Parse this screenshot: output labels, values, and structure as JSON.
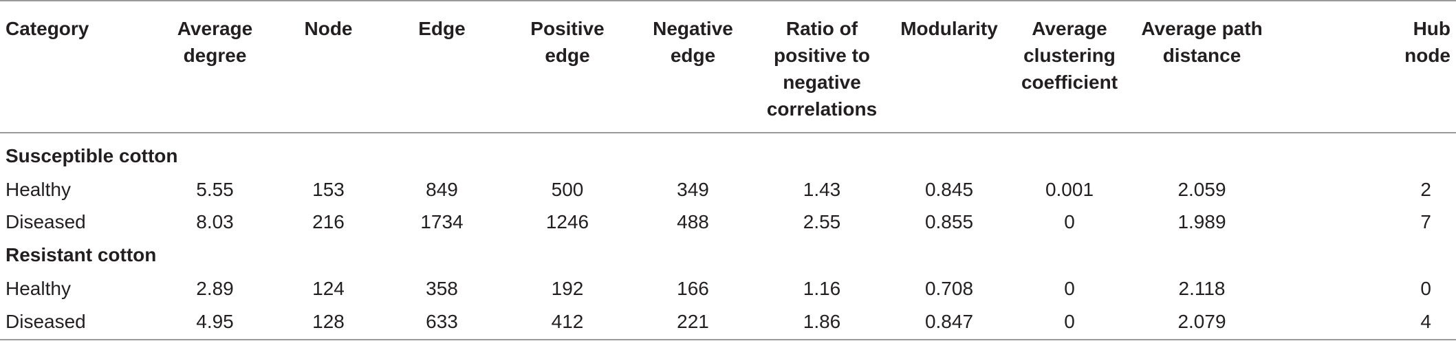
{
  "table": {
    "headers": [
      "Category",
      "Average\ndegree",
      "Node",
      "Edge",
      "Positive\nedge",
      "Negative\nedge",
      "Ratio of\npositive to\nnegative\ncorrelations",
      "Modularity",
      "Average\nclustering\ncoefficient",
      "Average path\ndistance",
      "Hub\nnode"
    ],
    "groups": [
      {
        "name": "Susceptible cotton",
        "rows": [
          [
            "Healthy",
            "5.55",
            "153",
            "849",
            "500",
            "349",
            "1.43",
            "0.845",
            "0.001",
            "2.059",
            "2"
          ],
          [
            "Diseased",
            "8.03",
            "216",
            "1734",
            "1246",
            "488",
            "2.55",
            "0.855",
            "0",
            "1.989",
            "7"
          ]
        ]
      },
      {
        "name": "Resistant cotton",
        "rows": [
          [
            "Healthy",
            "2.89",
            "124",
            "358",
            "192",
            "166",
            "1.16",
            "0.708",
            "0",
            "2.118",
            "0"
          ],
          [
            "Diseased",
            "4.95",
            "128",
            "633",
            "412",
            "221",
            "1.86",
            "0.847",
            "0",
            "2.079",
            "4"
          ]
        ]
      }
    ]
  }
}
